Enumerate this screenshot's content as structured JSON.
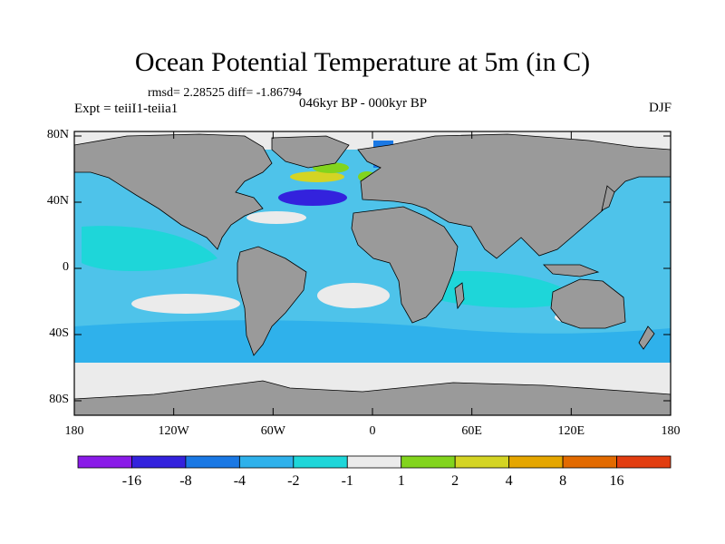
{
  "title": "Ocean Potential Temperature at 5m (in C)",
  "stats": "rmsd= 2.28525  diff= -1.86794",
  "experiment": "Expt = teiiI1-teiia1",
  "period": "046kyr BP - 000kyr BP",
  "season": "DJF",
  "map": {
    "lat_ticks": [
      "80N",
      "40N",
      "0",
      "40S",
      "80S"
    ],
    "lon_ticks": [
      "180",
      "120W",
      "60W",
      "0",
      "60E",
      "120E",
      "180"
    ],
    "colors": {
      "land": "#9a9a9a",
      "ocean_base": "#4ec3ea",
      "coast": "#000000"
    }
  },
  "colorbar": {
    "colors": [
      "#8a1be8",
      "#3322dd",
      "#1a78e4",
      "#2fb1eb",
      "#1ed6d9",
      "#ebebeb",
      "#82d41d",
      "#d4d424",
      "#e5a600",
      "#e26a00",
      "#e23d10"
    ],
    "labels": [
      "-16",
      "-8",
      "-4",
      "-2",
      "-1",
      "1",
      "2",
      "4",
      "8",
      "16"
    ]
  }
}
